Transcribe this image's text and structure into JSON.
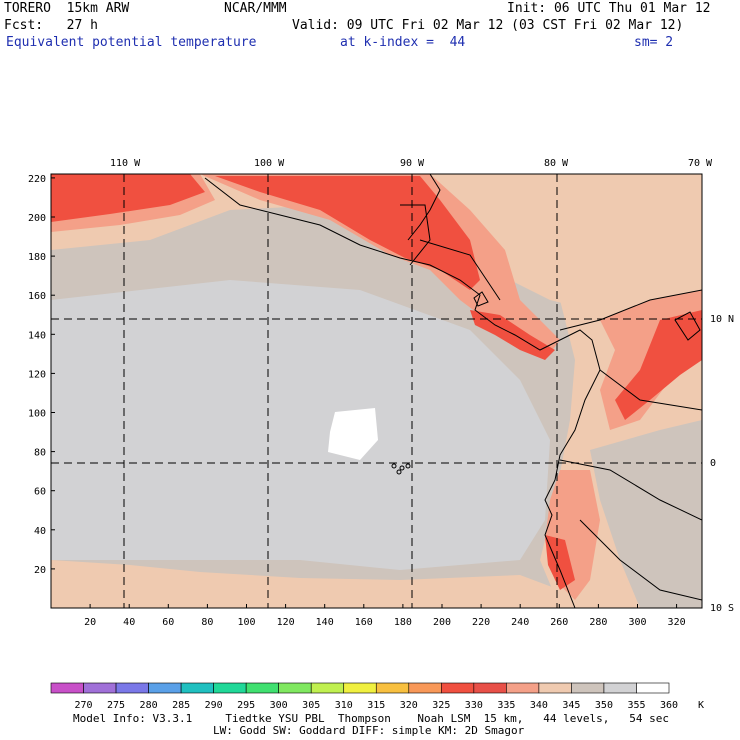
{
  "header": {
    "model": "TORERO  15km ARW",
    "center": "NCAR/MMM",
    "init": "Init: 06 UTC Thu 01 Mar 12",
    "fcst": "Fcst:   27 h",
    "valid": "Valid: 09 UTC Fri 02 Mar 12 (03 CST Fri 02 Mar 12)",
    "field": "Equivalent potential temperature",
    "level": "at k-index =  44",
    "smooth": "sm= 2"
  },
  "map": {
    "lon_labels": [
      "110 W",
      "100 W",
      "90 W",
      "80 W",
      "70 W"
    ],
    "lat_labels": [
      "10 N",
      "0",
      "10 S"
    ],
    "y_ticks": [
      20,
      40,
      60,
      80,
      100,
      120,
      140,
      160,
      180,
      200,
      220
    ],
    "x_ticks": [
      20,
      40,
      60,
      80,
      100,
      120,
      140,
      160,
      180,
      200,
      220,
      240,
      260,
      280,
      300,
      320
    ]
  },
  "colorbar": {
    "labels": [
      "270",
      "275",
      "280",
      "285",
      "290",
      "295",
      "300",
      "305",
      "310",
      "315",
      "320",
      "325",
      "330",
      "335",
      "340",
      "345",
      "350",
      "355",
      "360"
    ],
    "unit": "K",
    "colors": [
      "#c850c8",
      "#a070d8",
      "#7a78e8",
      "#5aa0e8",
      "#20c0c0",
      "#20d898",
      "#40e070",
      "#80e860",
      "#c0f050",
      "#f0f040",
      "#f8c040",
      "#f89858",
      "#f05040",
      "#e85048",
      "#f4a088",
      "#efcab0",
      "#cec4bc",
      "#d2d2d4",
      "#ffffff"
    ]
  },
  "footer": {
    "line1": "Model Info: V3.3.1     Tiedtke YSU PBL  Thompson    Noah LSM  15 km,   44 levels,   54 sec",
    "line2": "LW: Godd SW: Goddard DIFF: simple KM: 2D Smagor"
  }
}
